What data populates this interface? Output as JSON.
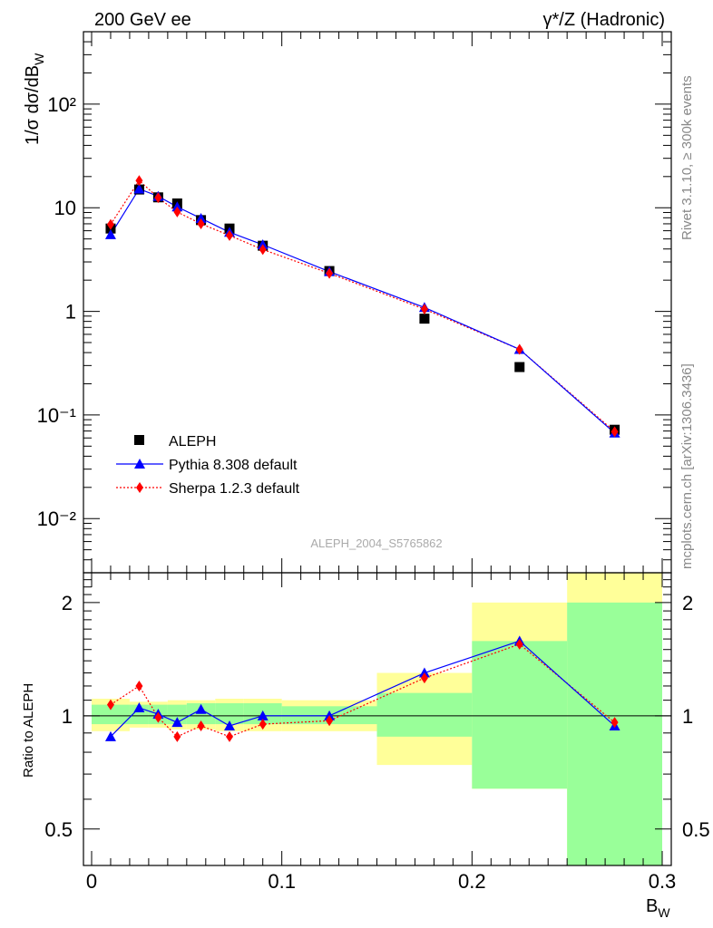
{
  "header": {
    "left_label": "200 GeV ee",
    "right_label": "γ*/Z (Hadronic)"
  },
  "side_labels": {
    "rivet": "Rivet 3.1.10, ≥ 300k events",
    "mcplots": "mcplots.cern.ch [arXiv:1306.3436]"
  },
  "watermark": "ALEPH_2004_S5765862",
  "axes": {
    "main_ylabel": "1/σ dσ/dB_W",
    "ratio_ylabel": "Ratio to ALEPH",
    "xlabel": "B_W",
    "main_yticks": [
      "10⁻²",
      "10⁻¹",
      "1",
      "10",
      "10²"
    ],
    "ratio_yticks": [
      "0.5",
      "1",
      "2"
    ],
    "xticks": [
      "0",
      "0.1",
      "0.2",
      "0.3"
    ]
  },
  "legend": [
    {
      "name": "ALEPH",
      "color": "#000000",
      "marker": "square"
    },
    {
      "name": "Pythia 8.308 default",
      "color": "#0000ff",
      "marker": "triangle"
    },
    {
      "name": "Sherpa 1.2.3 default",
      "color": "#ff0000",
      "marker": "diamond"
    }
  ],
  "chart_data": {
    "type": "scatter",
    "title": "",
    "xlabel": "B_W",
    "ylabel": "1/σ dσ/dB_W",
    "xlim": [
      0,
      0.3
    ],
    "ylim": [
      0.003,
      500
    ],
    "yscale": "log",
    "x": [
      0.01,
      0.025,
      0.035,
      0.045,
      0.0575,
      0.0725,
      0.09,
      0.125,
      0.175,
      0.225,
      0.275
    ],
    "bin_edges": [
      0,
      0.02,
      0.03,
      0.04,
      0.05,
      0.065,
      0.08,
      0.1,
      0.15,
      0.2,
      0.25,
      0.3
    ],
    "series": [
      {
        "name": "ALEPH",
        "color": "#000000",
        "values": [
          6.3,
          15.0,
          12.6,
          11.0,
          7.6,
          6.3,
          4.3,
          2.45,
          0.85,
          0.29,
          0.072
        ]
      },
      {
        "name": "Pythia 8.308 default",
        "color": "#0000ff",
        "values": [
          5.5,
          15.2,
          12.9,
          10.2,
          7.9,
          5.8,
          4.4,
          2.42,
          1.09,
          0.43,
          0.067
        ]
      },
      {
        "name": "Sherpa 1.2.3 default",
        "color": "#ff0000",
        "values": [
          6.9,
          18.3,
          12.5,
          9.1,
          7.0,
          5.4,
          3.95,
          2.33,
          1.05,
          0.43,
          0.069
        ]
      }
    ],
    "ratio": {
      "ylabel": "Ratio to ALEPH",
      "yscale": "log",
      "ylim": [
        0.4,
        2.4
      ],
      "reference": 1.0,
      "band_inner": [
        [
          0.95,
          1.07
        ],
        [
          0.95,
          1.07
        ],
        [
          0.95,
          1.07
        ],
        [
          0.95,
          1.07
        ],
        [
          0.95,
          1.08
        ],
        [
          0.95,
          1.08
        ],
        [
          0.95,
          1.08
        ],
        [
          0.95,
          1.06
        ],
        [
          0.88,
          1.15
        ],
        [
          0.64,
          1.58
        ],
        [
          0.35,
          2.0
        ]
      ],
      "band_outer": [
        [
          0.91,
          1.11
        ],
        [
          0.93,
          1.09
        ],
        [
          0.93,
          1.09
        ],
        [
          0.92,
          1.1
        ],
        [
          0.92,
          1.1
        ],
        [
          0.91,
          1.11
        ],
        [
          0.91,
          1.11
        ],
        [
          0.91,
          1.1
        ],
        [
          0.74,
          1.3
        ],
        [
          0.64,
          2.0
        ],
        [
          0.35,
          2.4
        ]
      ],
      "series": [
        {
          "name": "Pythia 8.308 default",
          "color": "#0000ff",
          "values": [
            0.88,
            1.05,
            1.01,
            0.96,
            1.04,
            0.94,
            1.0,
            1.0,
            1.3,
            1.58,
            0.94
          ]
        },
        {
          "name": "Sherpa 1.2.3 default",
          "color": "#ff0000",
          "values": [
            1.07,
            1.2,
            0.99,
            0.88,
            0.94,
            0.88,
            0.95,
            0.97,
            1.26,
            1.55,
            0.96
          ]
        }
      ]
    }
  }
}
